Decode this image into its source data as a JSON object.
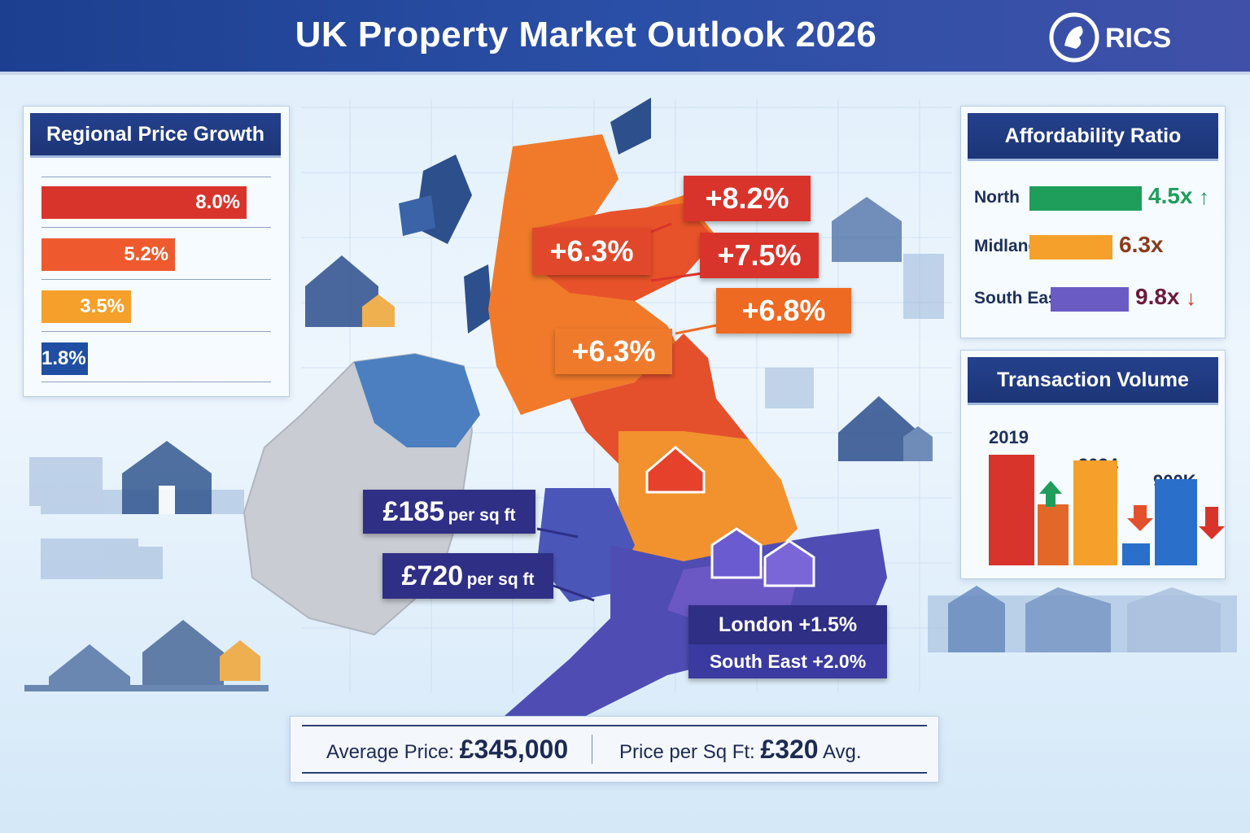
{
  "header": {
    "title": "UK Property Market Outlook 2026",
    "logo_text": "RICS"
  },
  "colors": {
    "header_bg": "#1d3f8f",
    "red": "#d9342b",
    "orange": "#ee6a22",
    "amber": "#f5a02a",
    "blue": "#1f4ea3",
    "green": "#1e9e5a",
    "purple": "#6a5bc4",
    "navy": "#2f2f86"
  },
  "regional_price_growth": {
    "title": "Regional Price Growth"
  },
  "affordability": {
    "title": "Affordability Ratio",
    "rows": [
      {
        "label": "North",
        "value": "4.5x",
        "trend": "up",
        "color": "#1e9e5a"
      },
      {
        "label": "Midlands",
        "value": "6.3x",
        "trend": "none",
        "color": "#f5a02a"
      },
      {
        "label": "South East",
        "value": "9.8x",
        "trend": "down",
        "color": "#6a5bc4"
      }
    ]
  },
  "transaction_volume": {
    "title": "Transaction Volume",
    "labels": [
      "2019",
      "2024",
      "900K"
    ]
  },
  "map": {
    "callouts": {
      "c1": "+8.2%",
      "c2": "+6.3%",
      "c3": "+7.5%",
      "c4": "+6.8%",
      "c5": "+6.3%",
      "sqft1_value": "£185",
      "sqft1_unit": "per sq ft",
      "sqft2_value": "£720",
      "sqft2_unit": "per sq ft",
      "london": "London +1.5%",
      "south_east": "South East +2.0%"
    }
  },
  "footer": {
    "avg_label": "Average Price:",
    "avg_value": "£345,000",
    "sqft_label": "Price per Sq Ft:",
    "sqft_value": "£320",
    "sqft_suffix": "Avg."
  },
  "chart_data": [
    {
      "type": "bar",
      "orientation": "horizontal",
      "title": "Regional Price Growth",
      "values": [
        8.0,
        5.2,
        3.5,
        1.8
      ],
      "value_labels": [
        "8.0%",
        "5.2%",
        "3.5%",
        "1.8%"
      ],
      "colors": [
        "#d9342b",
        "#ee5a2e",
        "#f5a02a",
        "#1f4ea3"
      ],
      "xlim": [
        0,
        9.2
      ]
    },
    {
      "type": "bar",
      "title": "Transaction Volume",
      "values": [
        100,
        55,
        95,
        20,
        78
      ],
      "colors": [
        "#d9342b",
        "#e2682a",
        "#f5a02a",
        "#2a6fc9",
        "#2a6fc9"
      ],
      "annotations": [
        "2019",
        "2024",
        "900K"
      ]
    }
  ]
}
